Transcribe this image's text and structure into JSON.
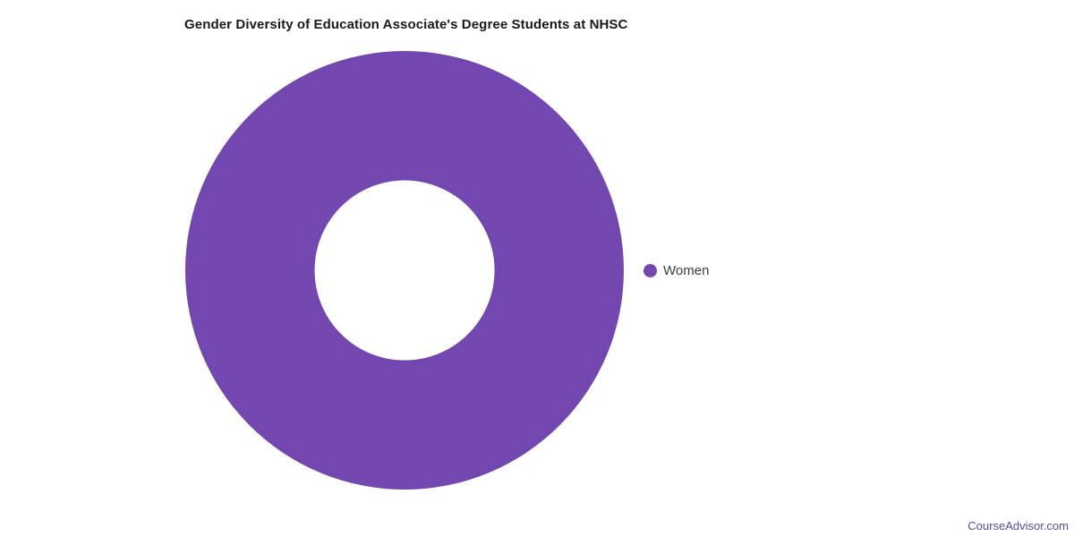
{
  "chart_data": {
    "type": "pie",
    "subtype": "donut",
    "title": "Gender Diversity of Education Associate's Degree Students at NHSC",
    "series": [
      {
        "label": "Women",
        "value": 100,
        "color": "#7248b0"
      }
    ],
    "inner_ratio": 0.41,
    "legend_position": "right",
    "legend_entries": [
      "Women"
    ]
  },
  "colors": {
    "slice_women": "#7248b0",
    "title_text": "#1a1a1a",
    "legend_text": "#3c3c3c",
    "watermark_text": "#5b4ba0",
    "background": "#ffffff"
  },
  "watermark": {
    "label": "CourseAdvisor.com"
  }
}
